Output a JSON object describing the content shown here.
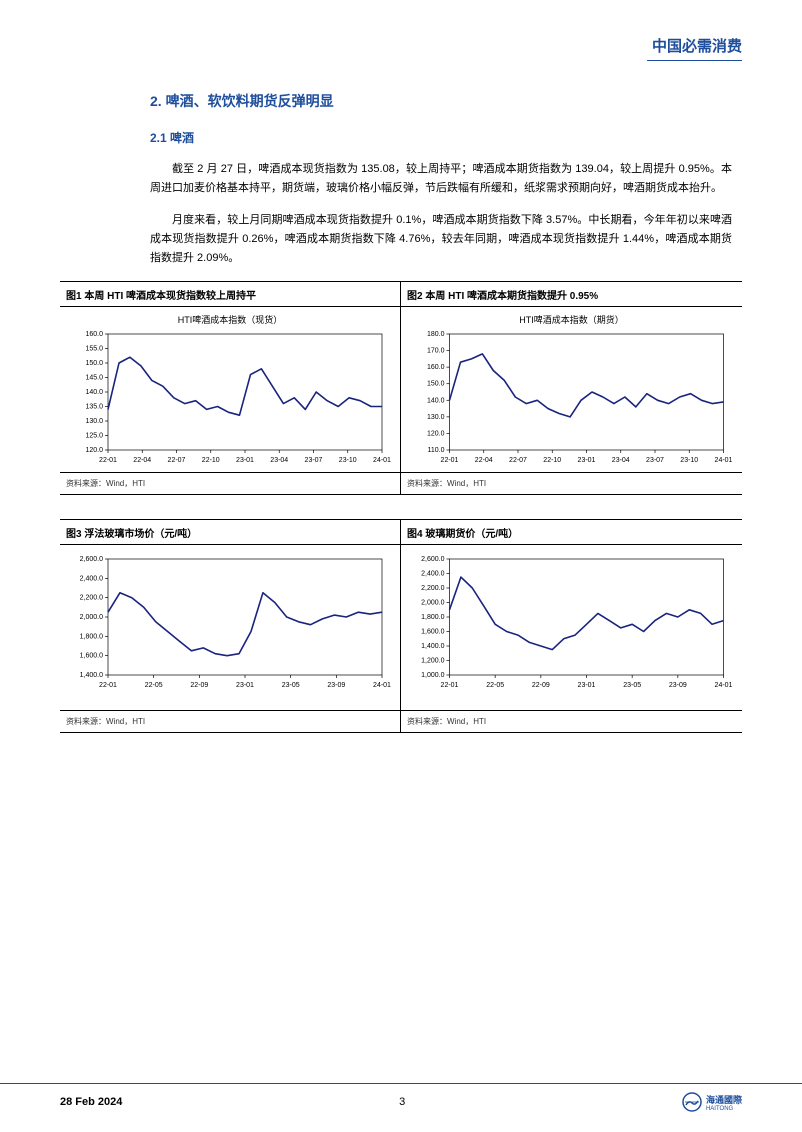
{
  "header": {
    "title": "中国必需消费"
  },
  "section": {
    "heading": "2.   啤酒、软饮料期货反弹明显",
    "subheading": "2.1  啤酒",
    "para1": "截至 2 月 27 日，啤酒成本现货指数为 135.08，较上周持平；啤酒成本期货指数为 139.04，较上周提升 0.95%。本周进口加麦价格基本持平，期货端，玻璃价格小幅反弹，节后跌幅有所缓和，纸浆需求预期向好，啤酒期货成本抬升。",
    "para2": "月度来看，较上月同期啤酒成本现货指数提升 0.1%，啤酒成本期货指数下降 3.57%。中长期看，今年年初以来啤酒成本现货指数提升 0.26%，啤酒成本期货指数下降 4.76%，较去年同期，啤酒成本现货指数提升 1.44%，啤酒成本期货指数提升 2.09%。"
  },
  "charts": {
    "chart1": {
      "type": "line",
      "caption": "图1  本周 HTI 啤酒成本现货指数较上周持平",
      "subtitle": "HTI啤酒成本指数（现货）",
      "source": "资料来源：Wind，HTI",
      "line_color": "#1a237e",
      "ylim": [
        120,
        160
      ],
      "ytick_step": 5,
      "x_labels": [
        "22-01",
        "22-04",
        "22-07",
        "22-10",
        "23-01",
        "23-04",
        "23-07",
        "23-10",
        "24-01"
      ],
      "values": [
        134,
        150,
        152,
        149,
        144,
        142,
        138,
        136,
        137,
        134,
        135,
        133,
        132,
        146,
        148,
        142,
        136,
        138,
        134,
        140,
        137,
        135,
        138,
        137,
        135,
        135
      ]
    },
    "chart2": {
      "type": "line",
      "caption": "图2  本周 HTI 啤酒成本期货指数提升 0.95%",
      "subtitle": "HTI啤酒成本指数（期货）",
      "source": "资料来源：Wind，HTI",
      "line_color": "#1a237e",
      "ylim": [
        110,
        180
      ],
      "ytick_step": 10,
      "x_labels": [
        "22-01",
        "22-04",
        "22-07",
        "22-10",
        "23-01",
        "23-04",
        "23-07",
        "23-10",
        "24-01"
      ],
      "values": [
        140,
        163,
        165,
        168,
        158,
        152,
        142,
        138,
        140,
        135,
        132,
        130,
        140,
        145,
        142,
        138,
        142,
        136,
        144,
        140,
        138,
        142,
        144,
        140,
        138,
        139
      ]
    },
    "chart3": {
      "type": "line",
      "caption": "图3  浮法玻璃市场价（元/吨）",
      "subtitle": "",
      "source": "资料来源：Wind，HTI",
      "line_color": "#1a237e",
      "ylim": [
        1400,
        2600
      ],
      "ytick_step": 200,
      "x_labels": [
        "22-01",
        "22-05",
        "22-09",
        "23-01",
        "23-05",
        "23-09",
        "24-01"
      ],
      "values": [
        2050,
        2250,
        2200,
        2100,
        1950,
        1850,
        1750,
        1650,
        1680,
        1620,
        1600,
        1620,
        1850,
        2250,
        2150,
        2000,
        1950,
        1920,
        1980,
        2020,
        2000,
        2050,
        2030,
        2050
      ]
    },
    "chart4": {
      "type": "line",
      "caption": "图4  玻璃期货价（元/吨）",
      "subtitle": "",
      "source": "资料来源：Wind，HTI",
      "line_color": "#1a237e",
      "ylim": [
        1000,
        2600
      ],
      "ytick_step": 200,
      "x_labels": [
        "22-01",
        "22-05",
        "22-09",
        "23-01",
        "23-05",
        "23-09",
        "24-01"
      ],
      "values": [
        1900,
        2350,
        2200,
        1950,
        1700,
        1600,
        1550,
        1450,
        1400,
        1350,
        1500,
        1550,
        1700,
        1850,
        1750,
        1650,
        1700,
        1600,
        1750,
        1850,
        1800,
        1900,
        1850,
        1700,
        1750
      ]
    }
  },
  "footer": {
    "date": "28 Feb 2024",
    "page": "3",
    "logo_text": "海通國際",
    "logo_sub": "HAITONG"
  }
}
